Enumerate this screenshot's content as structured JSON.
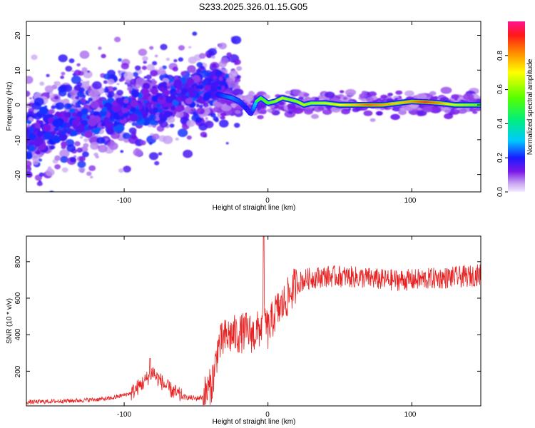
{
  "title": "S233.2025.326.01.15.G05",
  "chart_data": [
    {
      "type": "heatmap",
      "name": "spectrogram",
      "xlabel": "Height of straight line (km)",
      "ylabel": "Frequency (Hz)",
      "xlim": [
        -168,
        148
      ],
      "ylim": [
        -25,
        24
      ],
      "xticks": [
        -100,
        0,
        100
      ],
      "xtick_labels": [
        "-100",
        "0",
        "100"
      ],
      "yticks": [
        -20,
        -10,
        0,
        10,
        20
      ],
      "ytick_labels": [
        "-20",
        "-10",
        "0",
        "10",
        "20"
      ],
      "ridge": {
        "x": [
          -35,
          -30,
          -25,
          -20,
          -15,
          -12,
          -10,
          -8,
          -5,
          0,
          5,
          10,
          15,
          20,
          25,
          30,
          40,
          50,
          60,
          70,
          80,
          90,
          100,
          110,
          120,
          130,
          140,
          148
        ],
        "y": [
          3,
          2.5,
          2,
          1,
          -1,
          -2.5,
          -1,
          1,
          2,
          0.5,
          1,
          2,
          1.5,
          1,
          0,
          0.5,
          0.5,
          0,
          0,
          0,
          0,
          0.5,
          1,
          0.8,
          0.5,
          0,
          0,
          0
        ],
        "amplitude": [
          0.3,
          0.35,
          0.4,
          0.35,
          0.3,
          0.25,
          0.4,
          0.5,
          0.55,
          0.55,
          0.6,
          0.65,
          0.6,
          0.6,
          0.65,
          0.6,
          0.65,
          0.7,
          0.75,
          0.85,
          0.8,
          0.75,
          0.8,
          0.9,
          0.8,
          0.65,
          0.6,
          0.55
        ]
      },
      "colorbar": {
        "label": "Normalized spectral amplitude",
        "range": [
          0,
          1
        ],
        "ticks": [
          0.0,
          0.2,
          0.4,
          0.6,
          0.8
        ],
        "tick_labels": [
          "0.0",
          "0.2",
          "0.4",
          "0.6",
          "0.8"
        ]
      }
    },
    {
      "type": "line",
      "name": "snr",
      "xlabel": "Height of straight line (km)",
      "ylabel": "SNR (10 * v/v)",
      "xlim": [
        -168,
        148
      ],
      "ylim": [
        10,
        940
      ],
      "xticks": [
        -100,
        0,
        100
      ],
      "xtick_labels": [
        "-100",
        "0",
        "100"
      ],
      "yticks": [
        200,
        400,
        600,
        800
      ],
      "ytick_labels": [
        "200",
        "400",
        "600",
        "800"
      ],
      "series": [
        {
          "name": "SNR",
          "color": "#e82020",
          "x": [
            -168,
            -150,
            -130,
            -110,
            -95,
            -85,
            -80,
            -78,
            -75,
            -70,
            -60,
            -50,
            -45,
            -40,
            -37,
            -35,
            -30,
            -25,
            -20,
            -15,
            -10,
            -5,
            -2,
            0,
            5,
            10,
            15,
            20,
            25,
            30,
            40,
            50,
            60,
            70,
            80,
            90,
            100,
            110,
            120,
            130,
            140,
            148
          ],
          "y": [
            30,
            35,
            40,
            50,
            80,
            150,
            200,
            170,
            150,
            110,
            60,
            50,
            60,
            110,
            200,
            330,
            380,
            400,
            400,
            420,
            400,
            440,
            480,
            420,
            520,
            560,
            620,
            680,
            700,
            710,
            720,
            720,
            715,
            710,
            700,
            700,
            700,
            705,
            710,
            715,
            720,
            730
          ]
        }
      ]
    }
  ]
}
